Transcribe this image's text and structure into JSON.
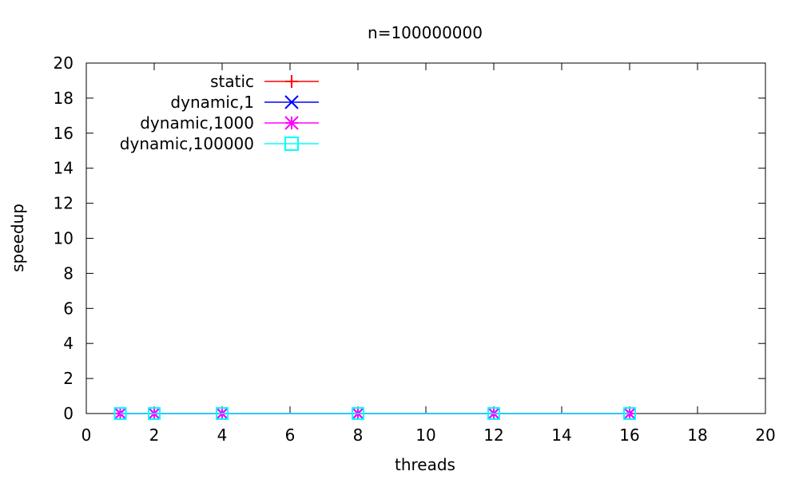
{
  "chart_data": {
    "type": "line",
    "title": "n=100000000",
    "xlabel": "threads",
    "ylabel": "speedup",
    "xlim": [
      0,
      20
    ],
    "ylim": [
      0,
      20
    ],
    "xticks": [
      0,
      2,
      4,
      6,
      8,
      10,
      12,
      14,
      16,
      18,
      20
    ],
    "yticks": [
      0,
      2,
      4,
      6,
      8,
      10,
      12,
      14,
      16,
      18,
      20
    ],
    "grid": false,
    "legend_position": "top-left",
    "x": [
      1,
      2,
      4,
      8,
      12,
      16
    ],
    "series": [
      {
        "name": "static",
        "values": [
          0,
          0,
          0,
          0,
          0,
          0
        ],
        "color": "#ff0000",
        "marker": "plus"
      },
      {
        "name": "dynamic,1",
        "values": [
          0,
          0,
          0,
          0,
          0,
          0
        ],
        "color": "#0000ff",
        "marker": "cross"
      },
      {
        "name": "dynamic,1000",
        "values": [
          0,
          0,
          0,
          0,
          0,
          0
        ],
        "color": "#ff00ff",
        "marker": "star"
      },
      {
        "name": "dynamic,100000",
        "values": [
          0,
          0,
          0,
          0,
          0,
          0
        ],
        "color": "#00ffff",
        "marker": "square"
      }
    ]
  }
}
